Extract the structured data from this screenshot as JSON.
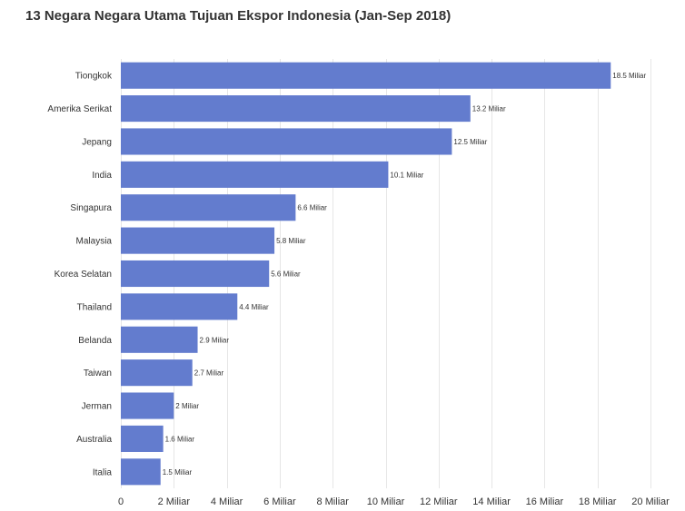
{
  "chart_data": {
    "type": "bar",
    "orientation": "horizontal",
    "title": "13 Negara Negara Utama Tujuan Ekspor Indonesia (Jan-Sep 2018)",
    "categories": [
      "Tiongkok",
      "Amerika Serikat",
      "Jepang",
      "India",
      "Singapura",
      "Malaysia",
      "Korea Selatan",
      "Thailand",
      "Belanda",
      "Taiwan",
      "Jerman",
      "Australia",
      "Italia"
    ],
    "values": [
      18.5,
      13.2,
      12.5,
      10.1,
      6.6,
      5.8,
      5.6,
      4.4,
      2.9,
      2.7,
      2,
      1.6,
      1.5
    ],
    "data_labels": [
      "18.5 Miliar",
      "13.2 Miliar",
      "12.5 Miliar",
      "10.1 Miliar",
      "6.6 Miliar",
      "5.8 Miliar",
      "5.6 Miliar",
      "4.4 Miliar",
      "2.9 Miliar",
      "2.7 Miliar",
      "2 Miliar",
      "1.6 Miliar",
      "1.5 Miliar"
    ],
    "xlim": [
      0,
      20
    ],
    "x_ticks": [
      0,
      2,
      4,
      6,
      8,
      10,
      12,
      14,
      16,
      18,
      20
    ],
    "x_tick_labels": [
      "0",
      "2 Miliar",
      "4 Miliar",
      "6 Miliar",
      "8 Miliar",
      "10 Miliar",
      "12 Miliar",
      "14 Miliar",
      "16 Miliar",
      "18 Miliar",
      "20 Miliar"
    ],
    "xlabel": "",
    "ylabel": "",
    "grid": true,
    "legend": "none",
    "bar_color": "#637cce"
  }
}
